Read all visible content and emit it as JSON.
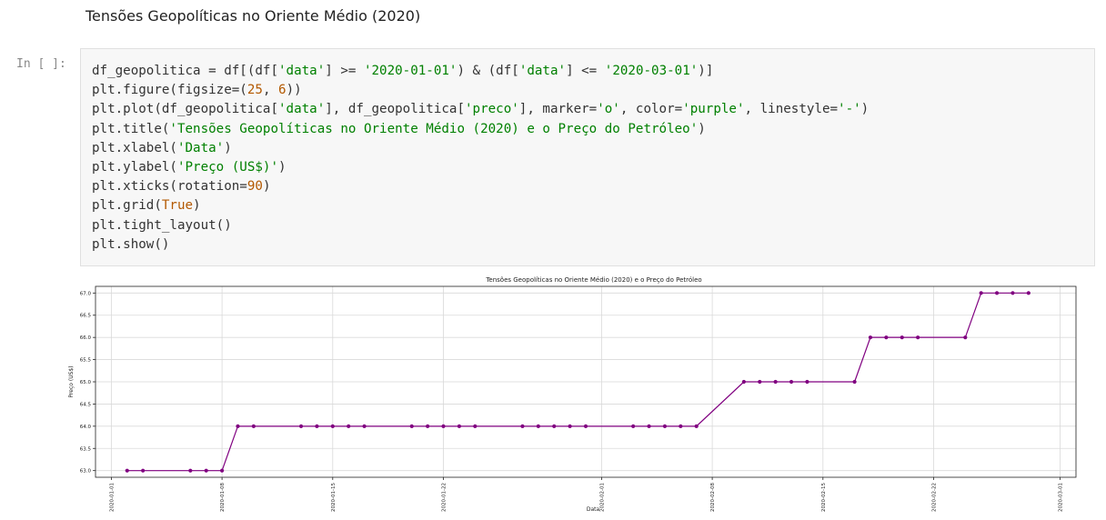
{
  "notebook": {
    "heading": "Tensões Geopolíticas no Oriente Médio (2020)",
    "prompt": "In [ ]:",
    "code": {
      "line1": [
        {
          "t": "df_geopolitica = df[(df[",
          "c": ""
        },
        {
          "t": "'data'",
          "c": "s"
        },
        {
          "t": "] >= ",
          "c": ""
        },
        {
          "t": "'2020-01-01'",
          "c": "s"
        },
        {
          "t": ") & (df[",
          "c": ""
        },
        {
          "t": "'data'",
          "c": "s"
        },
        {
          "t": "] <= ",
          "c": ""
        },
        {
          "t": "'2020-03-01'",
          "c": "s"
        },
        {
          "t": ")]",
          "c": ""
        }
      ],
      "line2": [
        {
          "t": "plt.figure(figsize=(",
          "c": ""
        },
        {
          "t": "25",
          "c": "n"
        },
        {
          "t": ", ",
          "c": ""
        },
        {
          "t": "6",
          "c": "n"
        },
        {
          "t": "))",
          "c": ""
        }
      ],
      "line3": [
        {
          "t": "plt.plot(df_geopolitica[",
          "c": ""
        },
        {
          "t": "'data'",
          "c": "s"
        },
        {
          "t": "], df_geopolitica[",
          "c": ""
        },
        {
          "t": "'preco'",
          "c": "s"
        },
        {
          "t": "], marker=",
          "c": ""
        },
        {
          "t": "'o'",
          "c": "s"
        },
        {
          "t": ", color=",
          "c": ""
        },
        {
          "t": "'purple'",
          "c": "s"
        },
        {
          "t": ", linestyle=",
          "c": ""
        },
        {
          "t": "'-'",
          "c": "s"
        },
        {
          "t": ")",
          "c": ""
        }
      ],
      "line4": [
        {
          "t": "plt.title(",
          "c": ""
        },
        {
          "t": "'Tensões Geopolíticas no Oriente Médio (2020) e o Preço do Petróleo'",
          "c": "s"
        },
        {
          "t": ")",
          "c": ""
        }
      ],
      "line5": [
        {
          "t": "plt.xlabel(",
          "c": ""
        },
        {
          "t": "'Data'",
          "c": "s"
        },
        {
          "t": ")",
          "c": ""
        }
      ],
      "line6": [
        {
          "t": "plt.ylabel(",
          "c": ""
        },
        {
          "t": "'Preço (US$)'",
          "c": "s"
        },
        {
          "t": ")",
          "c": ""
        }
      ],
      "line7": [
        {
          "t": "plt.xticks(rotation=",
          "c": ""
        },
        {
          "t": "90",
          "c": "n"
        },
        {
          "t": ")",
          "c": ""
        }
      ],
      "line8": [
        {
          "t": "plt.grid(",
          "c": ""
        },
        {
          "t": "True",
          "c": "n"
        },
        {
          "t": ")",
          "c": ""
        }
      ],
      "line9": [
        {
          "t": "plt.tight_layout()",
          "c": ""
        }
      ],
      "line10": [
        {
          "t": "plt.show()",
          "c": ""
        }
      ]
    }
  },
  "chart_data": {
    "type": "line",
    "title": "Tensões Geopolíticas no Oriente Médio (2020) e o Preço do Petróleo",
    "xlabel": "Data",
    "ylabel": "Preço (US$)",
    "color": "#800080",
    "marker": "o",
    "grid": true,
    "xlim": [
      "2019-12-31",
      "2020-03-02"
    ],
    "ylim": [
      62.85,
      67.15
    ],
    "x_ticks": [
      "2020-01-01",
      "2020-01-08",
      "2020-01-15",
      "2020-01-22",
      "2020-02-01",
      "2020-02-08",
      "2020-02-15",
      "2020-02-22",
      "2020-03-01"
    ],
    "y_ticks": [
      "63.0",
      "63.5",
      "64.0",
      "64.5",
      "65.0",
      "65.5",
      "66.0",
      "66.5",
      "67.0"
    ],
    "series": [
      {
        "x": [
          "2020-01-02",
          "2020-01-03",
          "2020-01-06",
          "2020-01-07",
          "2020-01-08",
          "2020-01-09",
          "2020-01-10",
          "2020-01-13",
          "2020-01-14",
          "2020-01-15",
          "2020-01-16",
          "2020-01-17",
          "2020-01-20",
          "2020-01-21",
          "2020-01-22",
          "2020-01-23",
          "2020-01-24",
          "2020-01-27",
          "2020-01-28",
          "2020-01-29",
          "2020-01-30",
          "2020-01-31",
          "2020-02-03",
          "2020-02-04",
          "2020-02-05",
          "2020-02-06",
          "2020-02-07",
          "2020-02-10",
          "2020-02-11",
          "2020-02-12",
          "2020-02-13",
          "2020-02-14",
          "2020-02-17",
          "2020-02-18",
          "2020-02-19",
          "2020-02-20",
          "2020-02-21",
          "2020-02-24",
          "2020-02-25",
          "2020-02-26",
          "2020-02-27",
          "2020-02-28"
        ],
        "values": [
          63,
          63,
          63,
          63,
          63,
          64,
          64,
          64,
          64,
          64,
          64,
          64,
          64,
          64,
          64,
          64,
          64,
          64,
          64,
          64,
          64,
          64,
          64,
          64,
          64,
          64,
          64,
          65,
          65,
          65,
          65,
          65,
          65,
          66,
          66,
          66,
          66,
          66,
          67,
          67,
          67,
          67
        ]
      }
    ]
  }
}
